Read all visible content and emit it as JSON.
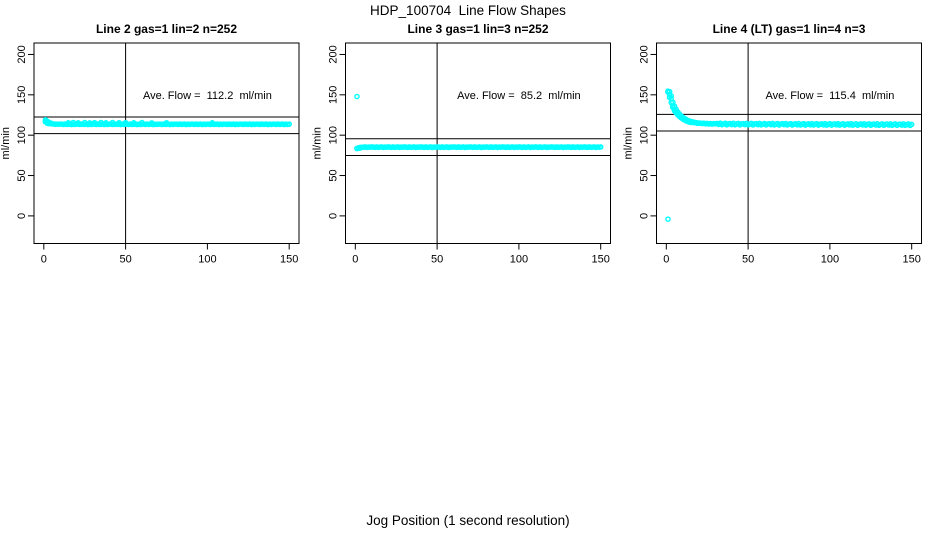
{
  "page": {
    "title": "HDP_100704  Line Flow Shapes",
    "xlabel": "Jog Position (1 second resolution)"
  },
  "chart_data": {
    "type": "scatter",
    "marker": "open-circle",
    "point_color": "#00FFFF",
    "axis_color": "#000000",
    "ylabel": "ml/min",
    "x_ticks": [
      0,
      50,
      100,
      150
    ],
    "y_ticks": [
      0,
      50,
      100,
      150,
      200
    ],
    "x_range": [
      -6,
      156
    ],
    "y_range": [
      -34.2,
      214.2
    ],
    "vline_x": 50,
    "annotation_pos": {
      "x": 100,
      "y": 150
    },
    "panels": [
      {
        "title": "Line 2 gas=1 lin=2 n=252",
        "ave_flow": 112.2,
        "ave_flow_label": "Ave. Flow =  112.2  ml/min",
        "hlines": [
          101.9,
          122.5
        ],
        "series": {
          "x_start": 1,
          "x_step": 1,
          "y": [
            117.8,
            116.0,
            115.0,
            114.4,
            114.0,
            113.9,
            113.7,
            113.6,
            113.6,
            113.8,
            113.7,
            113.3,
            113.8,
            113.4,
            113.5,
            113.8,
            113.2,
            113.6,
            113.3,
            113.7,
            113.7,
            113.3,
            113.8,
            113.4,
            113.5,
            113.8,
            113.2,
            113.6,
            113.3,
            113.7,
            113.7,
            113.3,
            113.8,
            113.4,
            113.5,
            113.8,
            113.2,
            113.6,
            113.3,
            113.7,
            113.7,
            113.3,
            113.8,
            113.4,
            113.5,
            113.8,
            113.2,
            113.6,
            113.3,
            113.7,
            113.7,
            113.3,
            113.8,
            113.4,
            113.5,
            113.8,
            113.2,
            113.6,
            113.3,
            113.7,
            113.7,
            113.3,
            113.8,
            113.4,
            113.5,
            113.8,
            113.2,
            113.6,
            113.3,
            113.7,
            113.7,
            113.3,
            113.8,
            113.4,
            113.5,
            113.8,
            113.2,
            113.6,
            113.3,
            113.7,
            113.7,
            113.3,
            113.8,
            113.4,
            113.5,
            113.8,
            113.2,
            113.6,
            113.3,
            113.7,
            113.7,
            113.3,
            113.8,
            113.4,
            113.5,
            113.8,
            113.2,
            113.6,
            113.3,
            113.7,
            113.7,
            113.3,
            113.8,
            113.4,
            113.5,
            113.8,
            113.2,
            113.6,
            113.3,
            113.7,
            113.7,
            113.3,
            113.8,
            113.4,
            113.5,
            113.8,
            113.2,
            113.6,
            113.3,
            113.7,
            113.7,
            113.3,
            113.8,
            113.4,
            113.5,
            113.8,
            113.2,
            113.6,
            113.3,
            113.7,
            113.7,
            113.3,
            113.8,
            113.4,
            113.5,
            113.8,
            113.2,
            113.6,
            113.3,
            113.7,
            113.7,
            113.3,
            113.8,
            113.4,
            113.5,
            113.8,
            113.2,
            113.6,
            113.3,
            113.7
          ]
        },
        "extra_points": [
          [
            1,
            119.0
          ],
          [
            1,
            116.4
          ],
          [
            2,
            117.3
          ],
          [
            2,
            114.9
          ],
          [
            3,
            116.1
          ],
          [
            3,
            114.3
          ],
          [
            4,
            115.2
          ],
          [
            15,
            115.4
          ],
          [
            18,
            115.7
          ],
          [
            21,
            115.3
          ],
          [
            25,
            115.6
          ],
          [
            28,
            115.2
          ],
          [
            31,
            115.5
          ],
          [
            35,
            115.7
          ],
          [
            38,
            115.3
          ],
          [
            42,
            115.6
          ],
          [
            46,
            115.4
          ],
          [
            50,
            115.5
          ],
          [
            55,
            115.3
          ],
          [
            60,
            115.6
          ],
          [
            66,
            115.2
          ],
          [
            75,
            115.4
          ],
          [
            103,
            115.3
          ]
        ]
      },
      {
        "title": "Line 3 gas=1 lin=3 n=252",
        "ave_flow": 85.2,
        "ave_flow_label": "Ave. Flow =  85.2  ml/min",
        "hlines": [
          74.9,
          95.5
        ],
        "series": {
          "x_start": 1,
          "x_step": 1,
          "y": [
            83.6,
            84.3,
            84.8,
            85.0,
            85.2,
            85.5,
            84.8,
            85.3,
            85.1,
            85.4,
            85.3,
            84.9,
            85.4,
            85.0,
            85.2,
            85.5,
            84.8,
            85.3,
            85.1,
            85.4,
            85.3,
            84.9,
            85.4,
            85.0,
            85.2,
            85.5,
            84.8,
            85.3,
            85.1,
            85.4,
            85.3,
            84.9,
            85.4,
            85.0,
            85.2,
            85.5,
            84.8,
            85.3,
            85.1,
            85.4,
            85.3,
            84.9,
            85.4,
            85.0,
            85.2,
            85.5,
            84.8,
            85.3,
            85.1,
            85.4,
            85.3,
            84.9,
            85.4,
            85.0,
            85.2,
            85.5,
            84.8,
            85.3,
            85.1,
            85.4,
            85.3,
            84.9,
            85.4,
            85.0,
            85.2,
            85.5,
            84.8,
            85.3,
            85.1,
            85.4,
            85.3,
            84.9,
            85.4,
            85.0,
            85.2,
            85.5,
            84.8,
            85.3,
            85.1,
            85.4,
            85.3,
            84.9,
            85.4,
            85.0,
            85.2,
            85.5,
            84.8,
            85.3,
            85.1,
            85.4,
            85.3,
            84.9,
            85.4,
            85.0,
            85.2,
            85.5,
            84.8,
            85.3,
            85.1,
            85.4,
            85.3,
            84.9,
            85.4,
            85.0,
            85.2,
            85.5,
            84.8,
            85.3,
            85.1,
            85.4,
            85.3,
            84.9,
            85.4,
            85.0,
            85.2,
            85.5,
            84.8,
            85.3,
            85.1,
            85.4,
            85.3,
            84.9,
            85.4,
            85.0,
            85.2,
            85.5,
            84.8,
            85.3,
            85.1,
            85.4,
            85.3,
            84.9,
            85.4,
            85.0,
            85.2,
            85.5,
            84.8,
            85.3,
            85.1,
            85.4,
            85.3,
            84.9,
            85.4,
            85.0,
            85.2,
            85.5,
            84.8,
            85.3,
            85.1,
            85.4
          ]
        },
        "extra_points": [
          [
            1,
            147.9
          ],
          [
            1,
            83.4
          ],
          [
            2,
            83.8
          ],
          [
            3,
            84.1
          ]
        ]
      },
      {
        "title": "Line 4 (LT) gas=1 lin=4 n=3",
        "ave_flow": 115.4,
        "ave_flow_label": "Ave. Flow =  115.4  ml/min",
        "hlines": [
          105.1,
          125.7
        ],
        "series": {
          "x_start": 1,
          "x_step": 1,
          "y": [
            153.4,
            146.8,
            140.4,
            136.3,
            131.8,
            129.2,
            126.0,
            124.4,
            122.0,
            121.1,
            119.3,
            118.9,
            117.4,
            117.2,
            116.2,
            116.3,
            115.4,
            115.5,
            114.8,
            115.1,
            114.9,
            114.4,
            114.8,
            114.1,
            114.5,
            113.9,
            114.4,
            113.8,
            114.3,
            114.2,
            114.5,
            113.3,
            114.8,
            113.0,
            114.0,
            114.7,
            112.9,
            114.1,
            114.4,
            113.2,
            114.7,
            112.9,
            113.9,
            114.6,
            112.8,
            114.0,
            114.3,
            113.1,
            114.6,
            112.8,
            113.8,
            114.5,
            112.7,
            113.9,
            114.3,
            113.1,
            114.5,
            112.8,
            113.8,
            114.4,
            112.7,
            113.8,
            114.2,
            113.0,
            114.5,
            112.7,
            113.7,
            114.4,
            112.6,
            113.8,
            114.2,
            113.0,
            114.4,
            112.7,
            113.7,
            114.3,
            112.6,
            113.7,
            114.1,
            112.9,
            114.4,
            112.6,
            113.6,
            114.3,
            112.5,
            113.7,
            114.1,
            112.9,
            114.3,
            112.6,
            113.6,
            114.2,
            112.5,
            113.6,
            114.0,
            112.8,
            114.3,
            112.5,
            113.5,
            114.2,
            112.4,
            113.6,
            114.0,
            112.8,
            114.2,
            112.5,
            113.5,
            114.1,
            112.4,
            113.5,
            113.9,
            112.7,
            114.2,
            112.4,
            113.4,
            114.1,
            112.3,
            113.5,
            113.9,
            112.7,
            114.1,
            112.4,
            113.4,
            114.0,
            112.3,
            113.4,
            113.8,
            112.6,
            114.1,
            112.3,
            113.3,
            114.0,
            112.2,
            113.4,
            113.8,
            112.6,
            114.0,
            112.3,
            113.3,
            113.9,
            112.2,
            113.3,
            113.7,
            112.5,
            114.0,
            112.2,
            113.2,
            113.9,
            112.1,
            113.3
          ]
        },
        "extra_points": [
          [
            1,
            -4.0
          ],
          [
            1,
            154.5
          ],
          [
            2,
            153.9
          ],
          [
            2,
            150.5
          ],
          [
            3,
            148.6
          ],
          [
            3,
            145.2
          ],
          [
            4,
            140.8
          ],
          [
            4,
            134.2
          ],
          [
            5,
            136.0
          ],
          [
            5,
            130.2
          ],
          [
            6,
            132.2
          ],
          [
            6,
            127.6
          ],
          [
            7,
            128.8
          ],
          [
            7,
            125.2
          ],
          [
            8,
            126.4
          ],
          [
            8,
            123.2
          ],
          [
            9,
            123.9
          ],
          [
            9,
            121.6
          ],
          [
            10,
            122.3
          ],
          [
            10,
            120.1
          ],
          [
            11,
            120.9
          ],
          [
            11,
            118.9
          ],
          [
            12,
            119.7
          ],
          [
            12,
            117.9
          ],
          [
            13,
            118.5
          ],
          [
            13,
            117.0
          ],
          [
            14,
            117.6
          ],
          [
            14,
            116.3
          ],
          [
            15,
            117.0
          ],
          [
            15,
            115.7
          ],
          [
            16,
            116.4
          ],
          [
            17,
            115.9
          ],
          [
            18,
            115.5
          ],
          [
            19,
            115.2
          ],
          [
            20,
            114.9
          ]
        ]
      }
    ]
  }
}
